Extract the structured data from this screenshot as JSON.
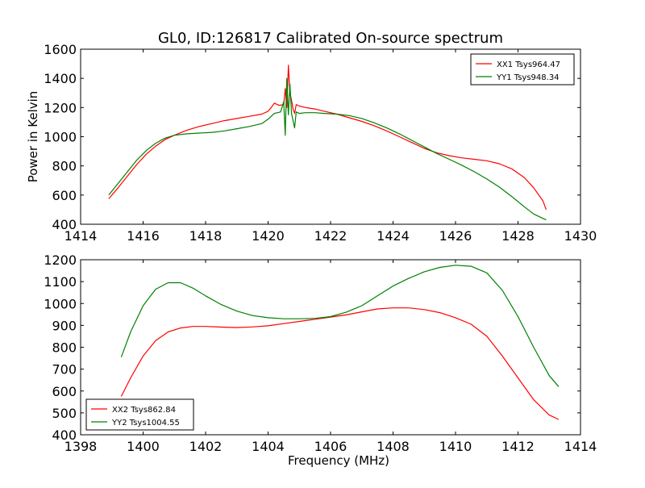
{
  "figure": {
    "title": "GL0, ID:126817 Calibrated On-source spectrum"
  },
  "chart_data": [
    {
      "type": "line",
      "ylabel": "Power in Kelvin",
      "xlabel": "",
      "xlim": [
        1414,
        1430
      ],
      "ylim": [
        400,
        1600
      ],
      "xticks": [
        1414,
        1416,
        1418,
        1420,
        1422,
        1424,
        1426,
        1428,
        1430
      ],
      "yticks": [
        400,
        600,
        800,
        1000,
        1200,
        1400,
        1600
      ],
      "legend": {
        "placement": "top-right"
      },
      "series": [
        {
          "name": "XX1 Tsys964.47",
          "color": "#ff0000",
          "x": [
            1414.9,
            1415.2,
            1415.5,
            1415.8,
            1416.1,
            1416.4,
            1416.7,
            1417.0,
            1417.4,
            1417.8,
            1418.2,
            1418.6,
            1419.0,
            1419.4,
            1419.8,
            1420.0,
            1420.1,
            1420.2,
            1420.35,
            1420.5,
            1420.55,
            1420.6,
            1420.65,
            1420.7,
            1420.75,
            1420.8,
            1420.85,
            1420.9,
            1421.0,
            1421.2,
            1421.5,
            1421.8,
            1422.2,
            1422.6,
            1423.0,
            1423.4,
            1423.8,
            1424.2,
            1424.6,
            1425.0,
            1425.4,
            1425.8,
            1426.2,
            1426.6,
            1427.0,
            1427.4,
            1427.8,
            1428.2,
            1428.5,
            1428.8,
            1428.9
          ],
          "y": [
            575,
            650,
            730,
            810,
            880,
            935,
            980,
            1010,
            1045,
            1070,
            1090,
            1110,
            1125,
            1140,
            1155,
            1175,
            1200,
            1230,
            1215,
            1220,
            1330,
            1200,
            1490,
            1300,
            1250,
            1190,
            1160,
            1220,
            1210,
            1200,
            1190,
            1175,
            1155,
            1130,
            1105,
            1075,
            1040,
            1000,
            960,
            920,
            890,
            870,
            855,
            845,
            835,
            815,
            780,
            720,
            650,
            560,
            500
          ]
        },
        {
          "name": "YY1 Tsys948.34",
          "color": "#008000",
          "x": [
            1414.9,
            1415.2,
            1415.5,
            1415.8,
            1416.1,
            1416.4,
            1416.7,
            1417.0,
            1417.4,
            1417.8,
            1418.2,
            1418.6,
            1419.0,
            1419.4,
            1419.8,
            1420.0,
            1420.2,
            1420.4,
            1420.5,
            1420.55,
            1420.6,
            1420.65,
            1420.7,
            1420.75,
            1420.8,
            1420.85,
            1420.9,
            1421.0,
            1421.2,
            1421.5,
            1421.8,
            1422.2,
            1422.6,
            1423.0,
            1423.4,
            1423.8,
            1424.2,
            1424.6,
            1425.0,
            1425.4,
            1425.8,
            1426.2,
            1426.6,
            1427.0,
            1427.4,
            1427.8,
            1428.2,
            1428.5,
            1428.8,
            1428.9
          ],
          "y": [
            600,
            680,
            760,
            840,
            905,
            955,
            990,
            1010,
            1020,
            1025,
            1030,
            1040,
            1055,
            1070,
            1090,
            1120,
            1160,
            1170,
            1240,
            1010,
            1400,
            1150,
            1360,
            1160,
            1110,
            1060,
            1170,
            1160,
            1165,
            1165,
            1160,
            1155,
            1145,
            1125,
            1095,
            1060,
            1020,
            975,
            930,
            885,
            845,
            805,
            760,
            710,
            655,
            590,
            520,
            470,
            440,
            430
          ]
        }
      ]
    },
    {
      "type": "line",
      "ylabel": "",
      "xlabel": "Frequency (MHz)",
      "xlim": [
        1398,
        1414
      ],
      "ylim": [
        400,
        1200
      ],
      "xticks": [
        1398,
        1400,
        1402,
        1404,
        1406,
        1408,
        1410,
        1412,
        1414
      ],
      "yticks": [
        400,
        500,
        600,
        700,
        800,
        900,
        1000,
        1100,
        1200
      ],
      "legend": {
        "placement": "bottom-left"
      },
      "series": [
        {
          "name": "XX2 Tsys862.84",
          "color": "#ff0000",
          "x": [
            1399.3,
            1399.6,
            1400.0,
            1400.4,
            1400.8,
            1401.2,
            1401.6,
            1402.0,
            1402.5,
            1403.0,
            1403.5,
            1404.0,
            1404.5,
            1405.0,
            1405.5,
            1406.0,
            1406.5,
            1407.0,
            1407.5,
            1408.0,
            1408.5,
            1409.0,
            1409.5,
            1410.0,
            1410.5,
            1411.0,
            1411.5,
            1412.0,
            1412.5,
            1413.0,
            1413.3
          ],
          "y": [
            575,
            660,
            760,
            830,
            870,
            888,
            895,
            895,
            892,
            890,
            893,
            898,
            908,
            918,
            928,
            938,
            948,
            962,
            975,
            980,
            980,
            972,
            958,
            935,
            905,
            850,
            760,
            660,
            560,
            490,
            470
          ]
        },
        {
          "name": "YY2 Tsys1004.55",
          "color": "#008000",
          "x": [
            1399.3,
            1399.6,
            1400.0,
            1400.4,
            1400.8,
            1401.2,
            1401.6,
            1402.0,
            1402.5,
            1403.0,
            1403.5,
            1404.0,
            1404.5,
            1405.0,
            1405.5,
            1406.0,
            1406.5,
            1407.0,
            1407.5,
            1408.0,
            1408.5,
            1409.0,
            1409.5,
            1410.0,
            1410.5,
            1411.0,
            1411.5,
            1412.0,
            1412.5,
            1413.0,
            1413.3
          ],
          "y": [
            755,
            870,
            990,
            1065,
            1095,
            1095,
            1070,
            1035,
            995,
            965,
            945,
            935,
            930,
            930,
            932,
            940,
            960,
            990,
            1035,
            1080,
            1115,
            1145,
            1165,
            1175,
            1170,
            1140,
            1060,
            940,
            800,
            670,
            620
          ]
        }
      ]
    }
  ]
}
